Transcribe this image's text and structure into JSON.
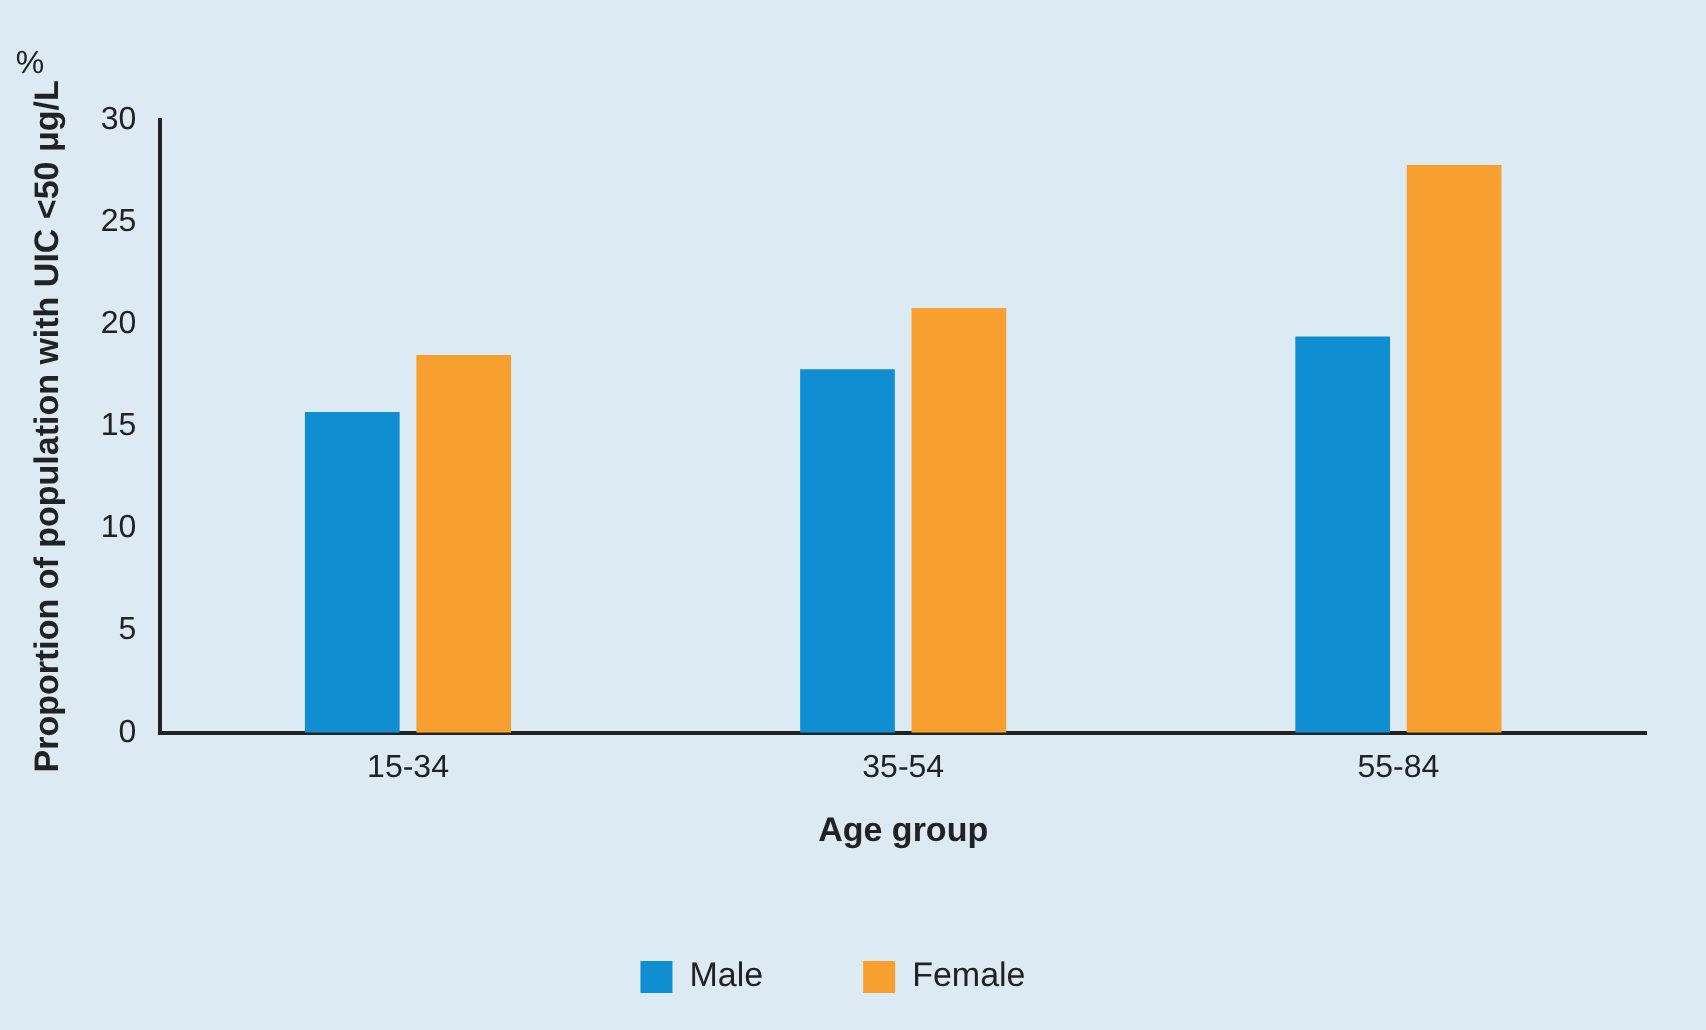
{
  "chart_data": {
    "type": "bar",
    "xlabel": "Age group",
    "ylabel": "Proportion of population with UIC <50 μg/L",
    "annotations": [
      "%"
    ],
    "categories": [
      "15-34",
      "35-54",
      "55-84"
    ],
    "series": [
      {
        "name": "Male",
        "color": "#0f8ed2",
        "values": [
          15.7,
          17.8,
          19.4
        ]
      },
      {
        "name": "Female",
        "color": "#f7a030",
        "values": [
          18.5,
          20.8,
          27.8
        ]
      }
    ],
    "ylim": [
      0,
      30
    ],
    "yticks": [
      0,
      5,
      10,
      15,
      20,
      25,
      30
    ],
    "grid": false,
    "legend": "bottom"
  }
}
